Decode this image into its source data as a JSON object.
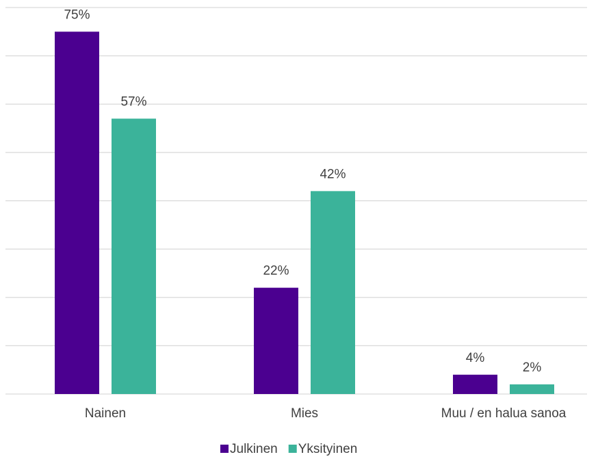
{
  "chart_data": {
    "type": "bar",
    "categories": [
      "Nainen",
      "Mies",
      "Muu / en halua sanoa"
    ],
    "series": [
      {
        "name": "Julkinen",
        "color": "#4b0090",
        "values": [
          75,
          22,
          4
        ],
        "value_labels": [
          "75%",
          "22%",
          "4%"
        ]
      },
      {
        "name": "Yksityinen",
        "color": "#3bb39a",
        "values": [
          57,
          42,
          2
        ],
        "value_labels": [
          "57%",
          "42%",
          "2%"
        ]
      }
    ],
    "ylim": [
      0,
      80
    ],
    "yticks": [
      0,
      10,
      20,
      30,
      40,
      50,
      60,
      70,
      80
    ],
    "grid": true,
    "legend": "bottom"
  }
}
